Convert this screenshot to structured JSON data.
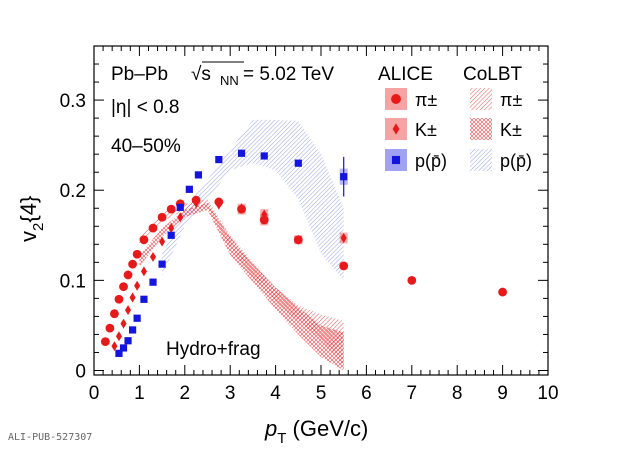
{
  "chart_data": {
    "type": "scatter",
    "collision": "Pb–Pb",
    "energy_prefix": "√s",
    "energy_subscript": "NN",
    "energy_value": " = 5.02 TeV",
    "experiment": "ALICE",
    "model": "CoLBT",
    "eta_cut": "|η| < 0.8",
    "centrality": "40–50%",
    "annotation": "Hydro+frag",
    "xlabel_main": "p",
    "xlabel_sub": "T",
    "xlabel_unit": " (GeV/c)",
    "ylabel_main": "v",
    "ylabel_sub": "2",
    "ylabel_rest": "{4}",
    "xlim": [
      0,
      10
    ],
    "ylim": [
      -0.005,
      0.36
    ],
    "xticks": [
      0,
      1,
      2,
      3,
      4,
      5,
      6,
      7,
      8,
      9,
      10
    ],
    "yticks": [
      0,
      0.1,
      0.2,
      0.3
    ],
    "ytick_labels": [
      "0",
      "0.1",
      "0.2",
      "0.3"
    ],
    "legend_data": [
      {
        "label": "π±",
        "color": "#e8191a"
      },
      {
        "label": "K±",
        "color": "#e8191a"
      },
      {
        "label": "p(p̄)",
        "color": "#1414e0"
      }
    ],
    "legend_model": [
      {
        "label": "π±",
        "color": "#e8191a"
      },
      {
        "label": "K±",
        "color": "#e8191a"
      },
      {
        "label": "p(p̄)",
        "color": "#1414e0"
      }
    ],
    "series": [
      {
        "name": "π±",
        "marker": "circle",
        "color": "#e8191a",
        "points": [
          [
            0.25,
            0.032
          ],
          [
            0.35,
            0.047
          ],
          [
            0.45,
            0.063
          ],
          [
            0.55,
            0.079
          ],
          [
            0.65,
            0.093
          ],
          [
            0.75,
            0.106
          ],
          [
            0.85,
            0.118
          ],
          [
            0.95,
            0.129
          ],
          [
            1.1,
            0.145
          ],
          [
            1.3,
            0.158
          ],
          [
            1.5,
            0.17
          ],
          [
            1.7,
            0.179
          ],
          [
            1.9,
            0.185
          ],
          [
            2.25,
            0.189
          ],
          [
            2.75,
            0.187
          ],
          [
            3.25,
            0.179
          ],
          [
            3.75,
            0.167
          ],
          [
            4.5,
            0.145
          ],
          [
            5.5,
            0.116
          ],
          [
            7.0,
            0.1
          ],
          [
            9.0,
            0.087
          ]
        ],
        "syst": [
          [
            3.25,
            0.006
          ],
          [
            3.75,
            0.006
          ],
          [
            4.5,
            0.004
          ],
          [
            5.5,
            0.004
          ]
        ]
      },
      {
        "name": "K±",
        "marker": "diamond",
        "color": "#e8191a",
        "points": [
          [
            0.45,
            0.027
          ],
          [
            0.55,
            0.038
          ],
          [
            0.65,
            0.052
          ],
          [
            0.75,
            0.067
          ],
          [
            0.85,
            0.081
          ],
          [
            0.95,
            0.094
          ],
          [
            1.1,
            0.11
          ],
          [
            1.3,
            0.126
          ],
          [
            1.5,
            0.143
          ],
          [
            1.7,
            0.158
          ],
          [
            1.9,
            0.17
          ],
          [
            2.25,
            0.186
          ],
          [
            2.75,
            0.184
          ],
          [
            3.25,
            0.18
          ],
          [
            3.75,
            0.173
          ],
          [
            4.5,
            0.145
          ],
          [
            5.5,
            0.147
          ]
        ],
        "syst": [
          [
            3.75,
            0.006
          ],
          [
            4.5,
            0.005
          ],
          [
            5.5,
            0.006
          ]
        ]
      },
      {
        "name": "p(p̄)",
        "marker": "square",
        "color": "#1414e0",
        "points": [
          [
            0.55,
            0.019
          ],
          [
            0.65,
            0.025
          ],
          [
            0.75,
            0.033
          ],
          [
            0.85,
            0.045
          ],
          [
            0.95,
            0.058
          ],
          [
            1.1,
            0.079
          ],
          [
            1.3,
            0.098
          ],
          [
            1.5,
            0.118
          ],
          [
            1.7,
            0.15
          ],
          [
            1.9,
            0.181
          ],
          [
            2.1,
            0.201
          ],
          [
            2.3,
            0.217
          ],
          [
            2.75,
            0.234
          ],
          [
            3.25,
            0.241
          ],
          [
            3.75,
            0.238
          ],
          [
            4.5,
            0.23
          ],
          [
            5.5,
            0.215
          ]
        ],
        "errors": [
          [
            5.5,
            0.022
          ]
        ]
      }
    ],
    "model_bands": [
      {
        "name": "CoLBT p(p̄)",
        "color": "#2b3bd6",
        "pattern": "hatch-blue",
        "upper": [
          [
            1.5,
            0.13
          ],
          [
            2.0,
            0.18
          ],
          [
            2.5,
            0.212
          ],
          [
            3.0,
            0.245
          ],
          [
            3.5,
            0.278
          ],
          [
            4.0,
            0.278
          ],
          [
            4.5,
            0.277
          ],
          [
            5.0,
            0.24
          ],
          [
            5.5,
            0.18
          ]
        ],
        "lower": [
          [
            1.5,
            0.105
          ],
          [
            2.0,
            0.16
          ],
          [
            2.5,
            0.19
          ],
          [
            3.0,
            0.222
          ],
          [
            3.5,
            0.23
          ],
          [
            4.0,
            0.222
          ],
          [
            4.5,
            0.19
          ],
          [
            5.0,
            0.13
          ],
          [
            5.5,
            0.1
          ]
        ]
      },
      {
        "name": "CoLBT π±",
        "color": "#e8191a",
        "pattern": "hatch-red",
        "upper": [
          [
            1.0,
            0.15
          ],
          [
            1.5,
            0.175
          ],
          [
            2.0,
            0.185
          ],
          [
            2.5,
            0.19
          ],
          [
            3.0,
            0.15
          ],
          [
            3.5,
            0.12
          ],
          [
            4.0,
            0.092
          ],
          [
            4.5,
            0.072
          ],
          [
            5.0,
            0.062
          ],
          [
            5.5,
            0.055
          ]
        ],
        "lower": [
          [
            1.0,
            0.14
          ],
          [
            1.5,
            0.165
          ],
          [
            2.0,
            0.178
          ],
          [
            2.5,
            0.181
          ],
          [
            3.0,
            0.135
          ],
          [
            3.5,
            0.103
          ],
          [
            4.0,
            0.076
          ],
          [
            4.5,
            0.055
          ],
          [
            5.0,
            0.035
          ],
          [
            5.5,
            0.005
          ]
        ]
      },
      {
        "name": "CoLBT K±",
        "color": "#e8191a",
        "pattern": "cross-red",
        "upper": [
          [
            1.0,
            0.128
          ],
          [
            1.5,
            0.158
          ],
          [
            2.0,
            0.178
          ],
          [
            2.5,
            0.186
          ],
          [
            3.0,
            0.148
          ],
          [
            3.5,
            0.118
          ],
          [
            4.0,
            0.092
          ],
          [
            4.5,
            0.07
          ],
          [
            5.0,
            0.05
          ],
          [
            5.5,
            0.042
          ]
        ],
        "lower": [
          [
            1.0,
            0.115
          ],
          [
            1.5,
            0.148
          ],
          [
            2.0,
            0.17
          ],
          [
            2.5,
            0.178
          ],
          [
            3.0,
            0.128
          ],
          [
            3.5,
            0.098
          ],
          [
            4.0,
            0.068
          ],
          [
            4.5,
            0.04
          ],
          [
            5.0,
            0.015
          ],
          [
            5.5,
            0.0
          ]
        ]
      }
    ]
  },
  "footer": {
    "publication_id": "ALI-PUB-527307"
  }
}
